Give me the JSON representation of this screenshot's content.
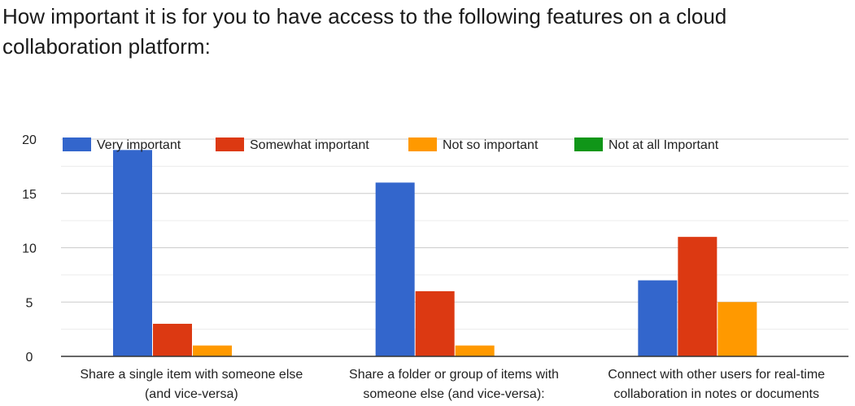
{
  "title": "How important it is for you to have access to the following features on a cloud collaboration platform:",
  "chart_data": {
    "type": "bar",
    "title": "How important it is for you to have access to the following features on a cloud collaboration platform:",
    "categories": [
      [
        "Share a single item with someone else",
        "(and vice-versa)"
      ],
      [
        "Share a folder or group of items with",
        "someone else (and vice-versa):"
      ],
      [
        "Connect with other users for real-time",
        "collaboration in notes or documents"
      ]
    ],
    "series": [
      {
        "name": "Very important",
        "color": "#3366cc",
        "values": [
          19,
          16,
          7
        ]
      },
      {
        "name": "Somewhat important",
        "color": "#dc3912",
        "values": [
          3,
          6,
          11
        ]
      },
      {
        "name": "Not so important",
        "color": "#ff9900",
        "values": [
          1,
          1,
          5
        ]
      },
      {
        "name": "Not at all Important",
        "color": "#109618",
        "values": [
          0,
          0,
          0
        ]
      }
    ],
    "ylim": [
      0,
      20
    ],
    "yticks": [
      0,
      5,
      10,
      15,
      20
    ],
    "grid": true,
    "legend_position": "top"
  }
}
